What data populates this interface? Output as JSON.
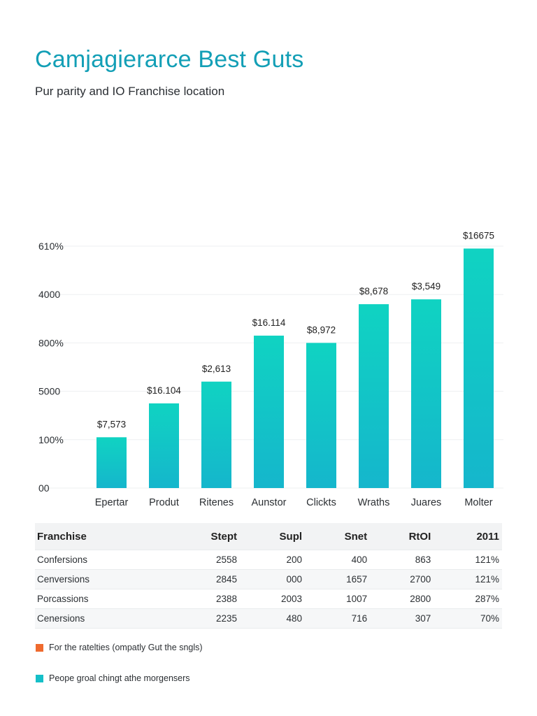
{
  "header": {
    "title": "Camjagierarce Best Guts",
    "subtitle": "Pur parity and IO Franchise location"
  },
  "colors": {
    "title": "#139fb6",
    "bar_top": "#10d3c2",
    "bar_bottom": "#15b6cc",
    "legend_orange": "#ef6a2e",
    "legend_teal": "#15bfc8"
  },
  "chart_data": {
    "type": "bar",
    "title": "",
    "xlabel": "",
    "ylabel": "",
    "yticks": [
      "610%",
      "4000",
      "800%",
      "5000",
      "100%",
      "00"
    ],
    "ylim": [
      0,
      100
    ],
    "grid": true,
    "categories": [
      "Epertar",
      "Produt",
      "Ritenes",
      "Aunstor",
      "Clickts",
      "Wraths",
      "Juares",
      "Molter"
    ],
    "values": [
      21,
      35,
      44,
      63,
      60,
      76,
      78,
      99
    ],
    "data_labels": [
      "$7,573",
      "$16.104",
      "$2,613",
      "$16.114",
      "$8,972",
      "$8,678",
      "$3,549",
      "$16675"
    ]
  },
  "table": {
    "columns": [
      "Franchise",
      "Stept",
      "Supl",
      "Snet",
      "RtOI",
      "2011"
    ],
    "rows": [
      [
        "Confersions",
        "2558",
        "200",
        "400",
        "863",
        "121%"
      ],
      [
        "Cenversions",
        "2845",
        "000",
        "1657",
        "2700",
        "121%"
      ],
      [
        "Porcassions",
        "2388",
        "2003",
        "1007",
        "2800",
        "287%"
      ],
      [
        "Cenersions",
        "2235",
        "480",
        "716",
        "307",
        "70%"
      ]
    ]
  },
  "legend": [
    {
      "label": "For the ratelties (ompatly Gut the sngls)",
      "color": "#ef6a2e"
    },
    {
      "label": "Peope groal chingt athe morgensers",
      "color": "#15bfc8"
    }
  ]
}
